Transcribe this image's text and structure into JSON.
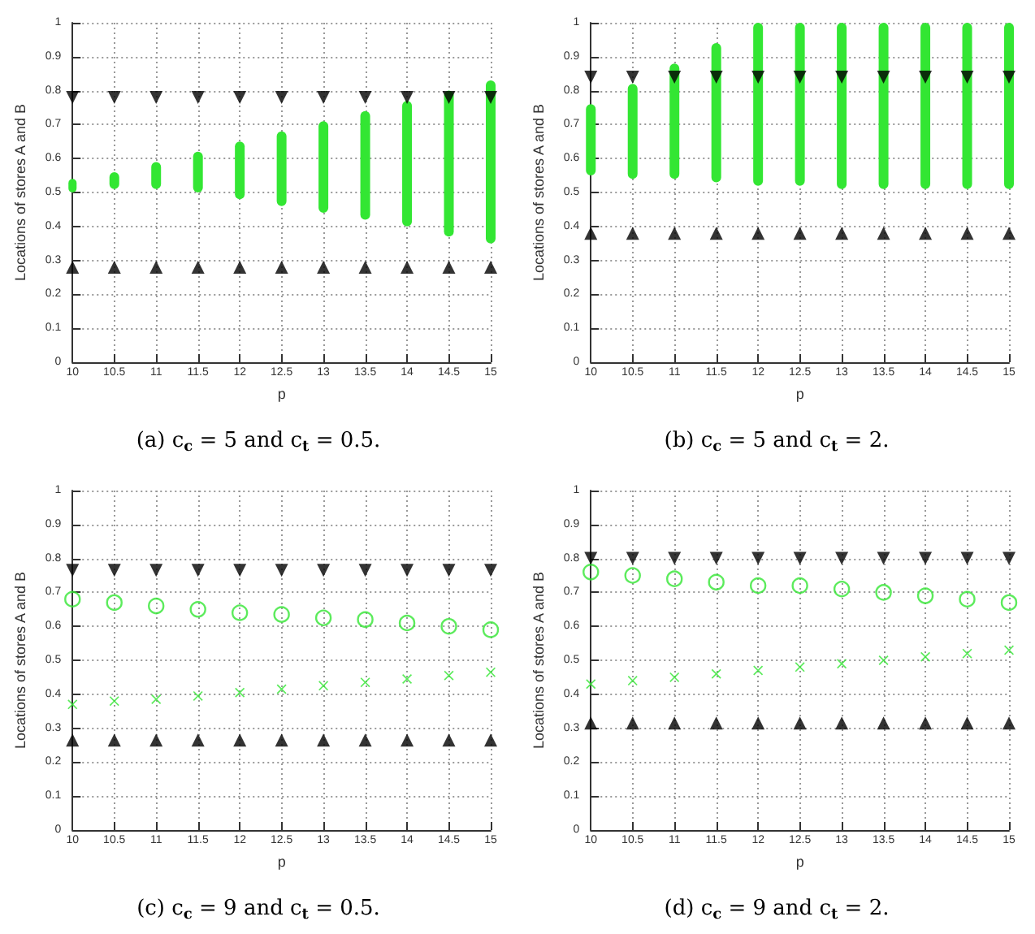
{
  "chart_data": [
    {
      "type": "scatter",
      "title": "(a) c$_{c}$ = 5 and c$_{t}$ = 0.5.",
      "xlabel": "p",
      "ylabel": "Locations of stores A and B",
      "x": [
        10,
        10.5,
        11,
        11.5,
        12,
        12.5,
        13,
        13.5,
        14,
        14.5,
        15
      ],
      "xlim": [
        10,
        15
      ],
      "xticks": [
        10,
        10.5,
        11,
        11.5,
        12,
        12.5,
        13,
        13.5,
        14,
        14.5,
        15
      ],
      "ylim": [
        0,
        1
      ],
      "yticks": [
        0,
        0.1,
        0.2,
        0.3,
        0.4,
        0.5,
        0.6,
        0.7,
        0.8,
        0.9,
        1
      ],
      "grid": true,
      "series": [
        {
          "type": "bar",
          "color": "#33e633",
          "base": [
            0.5,
            0.51,
            0.51,
            0.5,
            0.48,
            0.46,
            0.44,
            0.42,
            0.4,
            0.37,
            0.35
          ],
          "values": [
            0.04,
            0.05,
            0.08,
            0.12,
            0.17,
            0.22,
            0.27,
            0.32,
            0.37,
            0.43,
            0.48
          ]
        },
        {
          "marker": "triangle-down",
          "color": "#000000",
          "values": [
            0.78,
            0.78,
            0.78,
            0.78,
            0.78,
            0.78,
            0.78,
            0.78,
            0.78,
            0.78,
            0.78
          ]
        },
        {
          "marker": "triangle",
          "color": "#000000",
          "values": [
            0.28,
            0.28,
            0.28,
            0.28,
            0.28,
            0.28,
            0.28,
            0.28,
            0.28,
            0.28,
            0.28
          ]
        }
      ]
    },
    {
      "type": "scatter",
      "title": "(b) c$_{c}$ = 5 and c$_{t}$ = 2.",
      "xlabel": "p",
      "ylabel": "Locations of stores A and B",
      "x": [
        10,
        10.5,
        11,
        11.5,
        12,
        12.5,
        13,
        13.5,
        14,
        14.5,
        15
      ],
      "xlim": [
        10,
        15
      ],
      "xticks": [
        10,
        10.5,
        11,
        11.5,
        12,
        12.5,
        13,
        13.5,
        14,
        14.5,
        15
      ],
      "ylim": [
        0,
        1
      ],
      "yticks": [
        0,
        0.1,
        0.2,
        0.3,
        0.4,
        0.5,
        0.6,
        0.7,
        0.8,
        0.9,
        1
      ],
      "grid": true,
      "series": [
        {
          "type": "bar",
          "color": "#33e633",
          "base": [
            0.55,
            0.54,
            0.54,
            0.53,
            0.52,
            0.52,
            0.51,
            0.51,
            0.51,
            0.51,
            0.51
          ],
          "values": [
            0.21,
            0.28,
            0.34,
            0.41,
            0.48,
            0.48,
            0.49,
            0.49,
            0.49,
            0.49,
            0.49
          ]
        },
        {
          "marker": "triangle-down",
          "color": "#000000",
          "values": [
            0.84,
            0.84,
            0.84,
            0.84,
            0.84,
            0.84,
            0.84,
            0.84,
            0.84,
            0.84,
            0.84
          ]
        },
        {
          "marker": "triangle",
          "color": "#000000",
          "values": [
            0.38,
            0.38,
            0.38,
            0.38,
            0.38,
            0.38,
            0.38,
            0.38,
            0.38,
            0.38,
            0.38
          ]
        }
      ]
    },
    {
      "type": "scatter",
      "title": "(c) c$_{c}$ = 9 and c$_{t}$ = 0.5.",
      "xlabel": "p",
      "ylabel": "Locations of stores A and B",
      "x": [
        10,
        10.5,
        11,
        11.5,
        12,
        12.5,
        13,
        13.5,
        14,
        14.5,
        15
      ],
      "xlim": [
        10,
        15
      ],
      "xticks": [
        10,
        10.5,
        11,
        11.5,
        12,
        12.5,
        13,
        13.5,
        14,
        14.5,
        15
      ],
      "ylim": [
        0,
        1
      ],
      "yticks": [
        0,
        0.1,
        0.2,
        0.3,
        0.4,
        0.5,
        0.6,
        0.7,
        0.8,
        0.9,
        1
      ],
      "grid": true,
      "series": [
        {
          "marker": "circle",
          "color": "#33e633",
          "values": [
            0.68,
            0.67,
            0.66,
            0.65,
            0.64,
            0.635,
            0.625,
            0.62,
            0.61,
            0.6,
            0.59
          ]
        },
        {
          "marker": "cross",
          "color": "#33e633",
          "values": [
            0.37,
            0.38,
            0.385,
            0.395,
            0.405,
            0.415,
            0.425,
            0.435,
            0.445,
            0.455,
            0.465
          ]
        },
        {
          "marker": "triangle-down",
          "color": "#000000",
          "values": [
            0.765,
            0.765,
            0.765,
            0.765,
            0.765,
            0.765,
            0.765,
            0.765,
            0.765,
            0.765,
            0.765
          ]
        },
        {
          "marker": "triangle",
          "color": "#000000",
          "values": [
            0.265,
            0.265,
            0.265,
            0.265,
            0.265,
            0.265,
            0.265,
            0.265,
            0.265,
            0.265,
            0.265
          ]
        }
      ]
    },
    {
      "type": "scatter",
      "title": "(d) c$_{c}$ = 9 and c$_{t}$ = 2.",
      "xlabel": "p",
      "ylabel": "Locations of stores A and B",
      "x": [
        10,
        10.5,
        11,
        11.5,
        12,
        12.5,
        13,
        13.5,
        14,
        14.5,
        15
      ],
      "xlim": [
        10,
        15
      ],
      "xticks": [
        10,
        10.5,
        11,
        11.5,
        12,
        12.5,
        13,
        13.5,
        14,
        14.5,
        15
      ],
      "ylim": [
        0,
        1
      ],
      "yticks": [
        0,
        0.1,
        0.2,
        0.3,
        0.4,
        0.5,
        0.6,
        0.7,
        0.8,
        0.9,
        1
      ],
      "grid": true,
      "series": [
        {
          "marker": "circle",
          "color": "#33e633",
          "values": [
            0.76,
            0.75,
            0.74,
            0.73,
            0.72,
            0.72,
            0.71,
            0.7,
            0.69,
            0.68,
            0.67
          ]
        },
        {
          "marker": "cross",
          "color": "#33e633",
          "values": [
            0.43,
            0.44,
            0.45,
            0.46,
            0.47,
            0.48,
            0.49,
            0.5,
            0.51,
            0.52,
            0.53
          ]
        },
        {
          "marker": "triangle-down",
          "color": "#000000",
          "values": [
            0.8,
            0.8,
            0.8,
            0.8,
            0.8,
            0.8,
            0.8,
            0.8,
            0.8,
            0.8,
            0.8
          ]
        },
        {
          "marker": "triangle",
          "color": "#000000",
          "values": [
            0.315,
            0.315,
            0.315,
            0.315,
            0.315,
            0.315,
            0.315,
            0.315,
            0.315,
            0.315,
            0.315
          ]
        }
      ]
    }
  ]
}
